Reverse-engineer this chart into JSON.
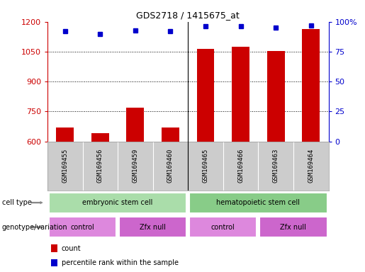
{
  "title": "GDS2718 / 1415675_at",
  "samples": [
    "GSM169455",
    "GSM169456",
    "GSM169459",
    "GSM169460",
    "GSM169465",
    "GSM169466",
    "GSM169463",
    "GSM169464"
  ],
  "counts": [
    670,
    640,
    770,
    670,
    1065,
    1075,
    1055,
    1165
  ],
  "percentile_ranks": [
    92,
    90,
    93,
    92,
    96,
    96,
    95,
    97
  ],
  "ylim_left": [
    600,
    1200
  ],
  "ylim_right": [
    0,
    100
  ],
  "yticks_left": [
    600,
    750,
    900,
    1050,
    1200
  ],
  "yticks_right": [
    0,
    25,
    50,
    75,
    100
  ],
  "bar_color": "#cc0000",
  "dot_color": "#0000cc",
  "cell_type_groups": [
    {
      "label": "embryonic stem cell",
      "start": 0,
      "end": 4,
      "color": "#aaddaa"
    },
    {
      "label": "hematopoietic stem cell",
      "start": 4,
      "end": 8,
      "color": "#88cc88"
    }
  ],
  "genotype_groups": [
    {
      "label": "control",
      "start": 0,
      "end": 2,
      "color": "#dd88dd"
    },
    {
      "label": "Zfx null",
      "start": 2,
      "end": 4,
      "color": "#cc66cc"
    },
    {
      "label": "control",
      "start": 4,
      "end": 6,
      "color": "#dd88dd"
    },
    {
      "label": "Zfx null",
      "start": 6,
      "end": 8,
      "color": "#cc66cc"
    }
  ],
  "legend_count_color": "#cc0000",
  "legend_pct_color": "#0000cc",
  "background_color": "#ffffff",
  "cell_type_row_label": "cell type",
  "genotype_row_label": "genotype/variation",
  "tick_color_left": "#cc0000",
  "tick_color_right": "#0000cc",
  "xlabel_bg": "#cccccc",
  "fig_width": 5.15,
  "fig_height": 3.84,
  "dpi": 100
}
